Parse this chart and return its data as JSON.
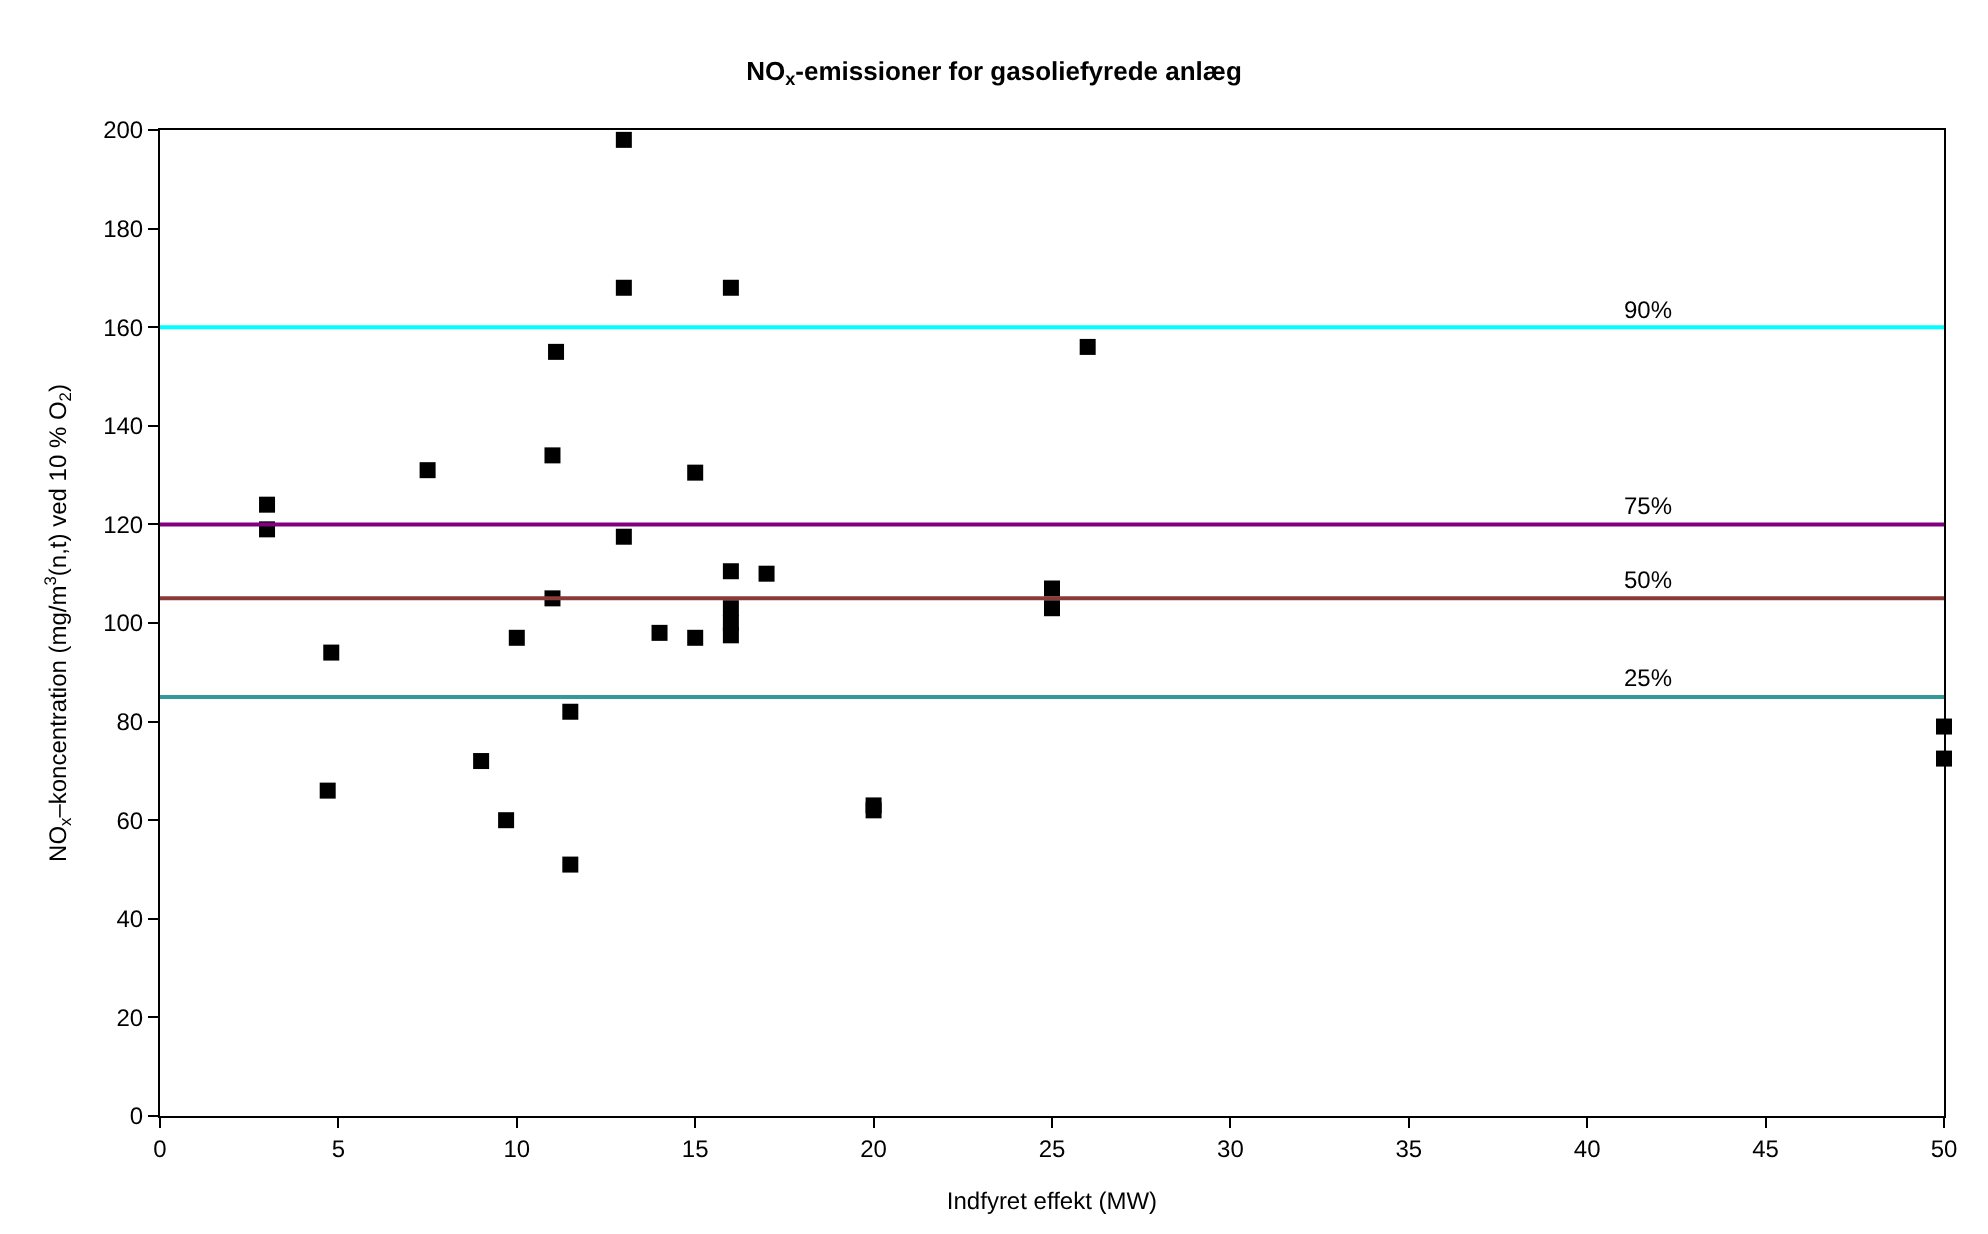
{
  "chart_data": {
    "type": "scatter",
    "title": "NO$_{x}$-emissioner for gasoliefyrede anlæg",
    "xlabel": "Indfyret effekt (MW)",
    "ylabel": "NO$_{x}$–koncentration (mg/m$^{3}$(n,t) ved 10 % O$_{2}$)",
    "x": [
      3,
      3,
      4.8,
      4.7,
      7.5,
      9,
      9.7,
      10,
      11,
      11,
      11.1,
      11.5,
      11.5,
      13,
      13,
      13,
      14,
      15,
      15,
      16,
      16,
      16,
      16,
      16,
      17,
      20,
      20,
      25,
      25,
      26,
      50,
      50
    ],
    "series": [
      {
        "color": "#000000",
        "values": [
          124,
          119,
          94,
          66,
          131,
          72,
          60,
          97,
          134,
          105,
          155,
          82,
          51,
          198,
          168,
          117.5,
          98,
          130.5,
          97,
          168,
          110.5,
          103,
          100,
          97.5,
          110,
          63,
          62,
          107,
          103,
          156,
          79,
          72.5
        ]
      }
    ],
    "marker": "square",
    "xlim": [
      0,
      50
    ],
    "ylim": [
      0,
      200
    ],
    "xticks": [
      0,
      5,
      10,
      15,
      20,
      25,
      30,
      35,
      40,
      45,
      50
    ],
    "yticks": [
      0,
      20,
      40,
      60,
      80,
      100,
      120,
      140,
      160,
      180,
      200
    ],
    "legend": false,
    "ref_lines": [
      {
        "axis": "y",
        "value": 160,
        "color": "#00ffff"
      },
      {
        "axis": "y",
        "value": 120,
        "color": "#800080"
      },
      {
        "axis": "y",
        "value": 105,
        "color": "#8b3a3a"
      },
      {
        "axis": "y",
        "value": 85,
        "color": "#339999"
      }
    ],
    "annotations": [
      {
        "text": "90%",
        "y": 160
      },
      {
        "text": "75%",
        "y": 120
      },
      {
        "text": "50%",
        "y": 105
      },
      {
        "text": "25%",
        "y": 85
      }
    ]
  }
}
